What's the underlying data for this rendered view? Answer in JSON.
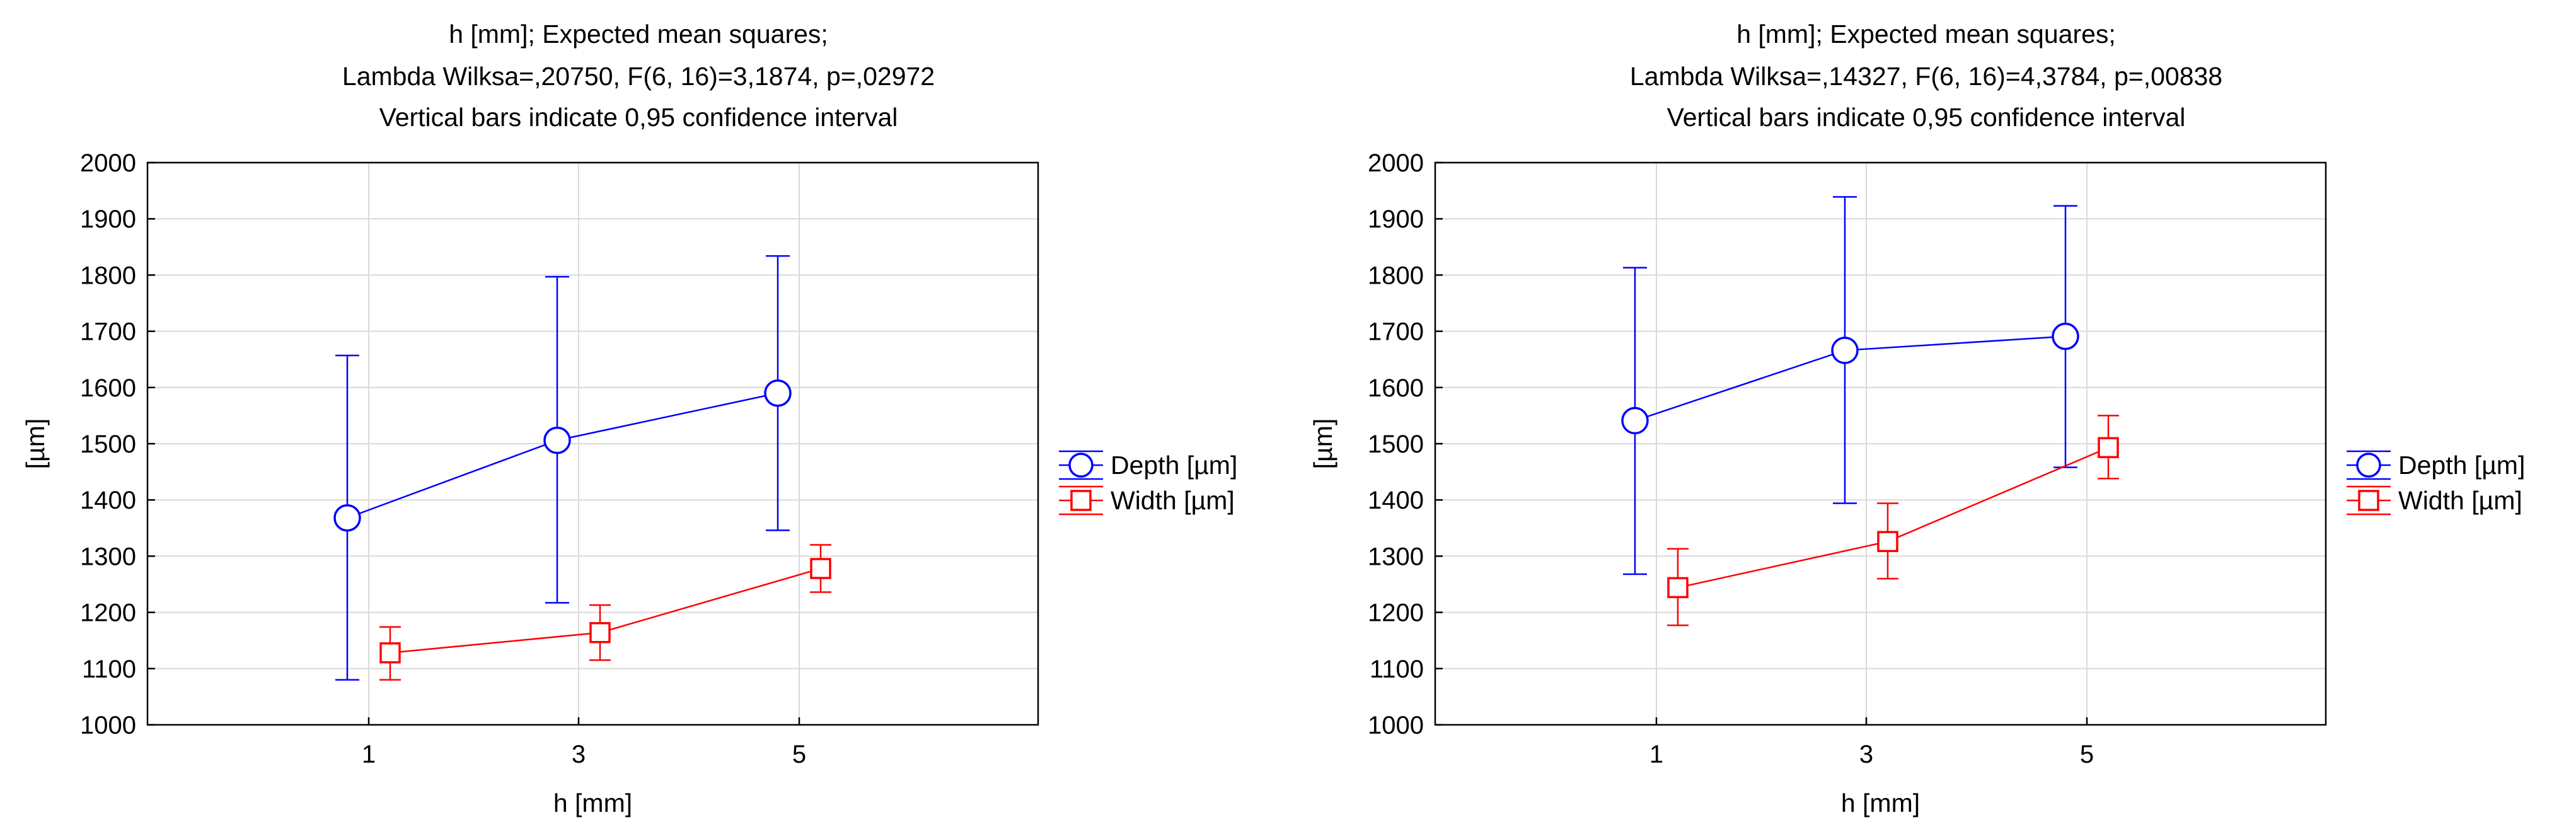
{
  "chart_data": [
    {
      "type": "line",
      "title": [
        "h [mm]; Expected mean squares;",
        "Lambda Wilksa=,20750, F(6, 16)=3,1874, p=,02972",
        "Vertical bars indicate 0,95 confidence interval"
      ],
      "xlabel": "h [mm]",
      "ylabel": "[µm]",
      "categories": [
        "1",
        "3",
        "5"
      ],
      "ylim": [
        1000,
        2000
      ],
      "yticks": [
        1000,
        1100,
        1200,
        1300,
        1400,
        1500,
        1600,
        1700,
        1800,
        1900,
        2000
      ],
      "grid": true,
      "legend_position": "right",
      "series": [
        {
          "name": "Depth [µm]",
          "color": "#0000ff",
          "marker": "circle",
          "values": [
            1368,
            1506,
            1590
          ],
          "ci_low": [
            1080,
            1217,
            1346
          ],
          "ci_high": [
            1657,
            1797,
            1834
          ]
        },
        {
          "name": "Width [µm]",
          "color": "#ff0000",
          "marker": "square",
          "values": [
            1128,
            1164,
            1278
          ],
          "ci_low": [
            1080,
            1115,
            1236
          ],
          "ci_high": [
            1174,
            1213,
            1320
          ]
        }
      ]
    },
    {
      "type": "line",
      "title": [
        "h [mm]; Expected mean squares;",
        "Lambda Wilksa=,14327, F(6, 16)=4,3784, p=,00838",
        "Vertical bars indicate 0,95 confidence interval"
      ],
      "xlabel": "h [mm]",
      "ylabel": "[µm]",
      "categories": [
        "1",
        "3",
        "5"
      ],
      "ylim": [
        1000,
        2000
      ],
      "yticks": [
        1000,
        1100,
        1200,
        1300,
        1400,
        1500,
        1600,
        1700,
        1800,
        1900,
        2000
      ],
      "grid": true,
      "legend_position": "right",
      "series": [
        {
          "name": "Depth [µm]",
          "color": "#0000ff",
          "marker": "circle",
          "values": [
            1541,
            1666,
            1691
          ],
          "ci_low": [
            1268,
            1394,
            1458
          ],
          "ci_high": [
            1813,
            1939,
            1923
          ]
        },
        {
          "name": "Width [µm]",
          "color": "#ff0000",
          "marker": "square",
          "values": [
            1244,
            1326,
            1493
          ],
          "ci_low": [
            1177,
            1260,
            1438
          ],
          "ci_high": [
            1313,
            1394,
            1550
          ]
        }
      ]
    }
  ]
}
